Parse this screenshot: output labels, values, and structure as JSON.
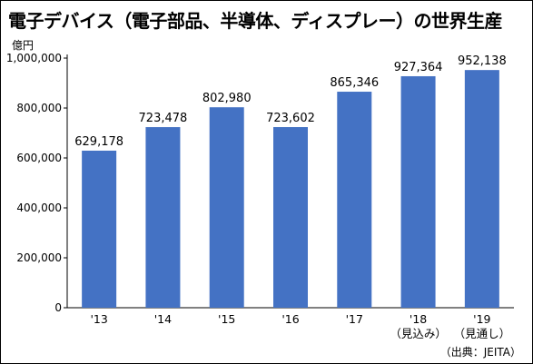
{
  "chart_data": {
    "type": "bar",
    "title": "電子デバイス（電子部品、半導体、ディスプレー）の世界生産",
    "unit_label": "億円",
    "source": "（出典：JEITA）",
    "categories": [
      "'13",
      "'14",
      "'15",
      "'16",
      "'17",
      "'18",
      "'19"
    ],
    "category_notes": [
      "",
      "",
      "",
      "",
      "",
      "（見込み）",
      "（見通し）"
    ],
    "values": [
      629178,
      723478,
      802980,
      723602,
      865346,
      927364,
      952138
    ],
    "value_labels": [
      "629,178",
      "723,478",
      "802,980",
      "723,602",
      "865,346",
      "927,364",
      "952,138"
    ],
    "ylim": [
      0,
      1000000
    ],
    "yticks": [
      0,
      200000,
      400000,
      600000,
      800000,
      1000000
    ],
    "ytick_labels": [
      "0",
      "200,000",
      "400,000",
      "600,000",
      "800,000",
      "1,000,000"
    ],
    "grid": false,
    "bar_color": "#4472c4"
  }
}
